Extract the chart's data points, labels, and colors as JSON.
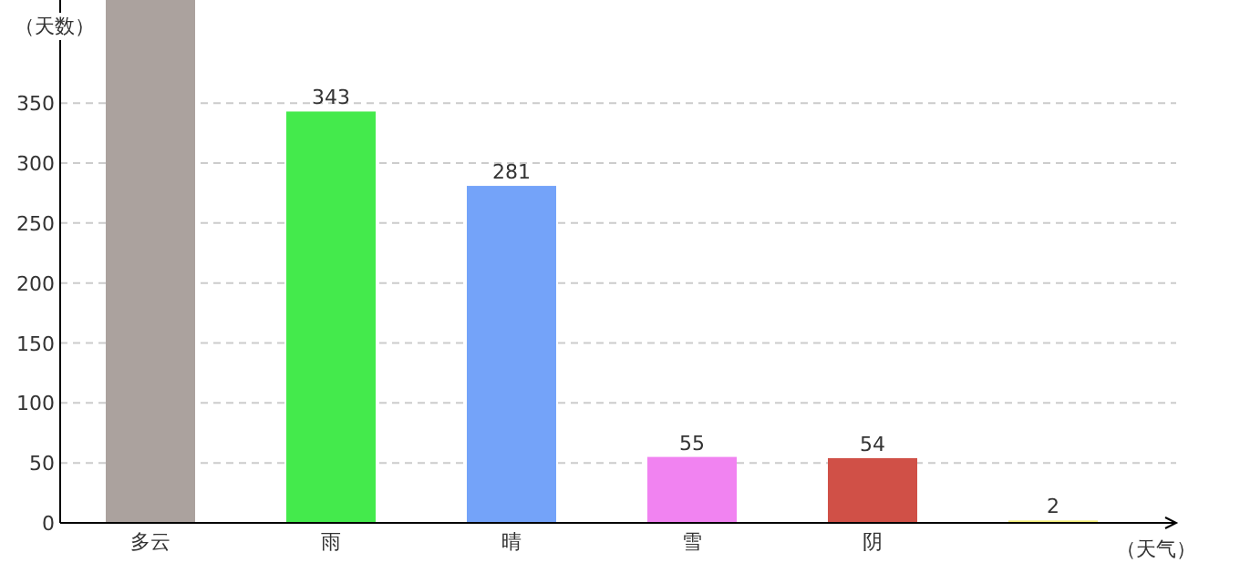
{
  "chart_data": {
    "type": "bar",
    "ylabel": "（天数）",
    "xlabel": "（天气）",
    "categories": [
      "多云",
      "雨",
      "晴",
      "雪",
      "阴",
      null
    ],
    "values": [
      436,
      343,
      281,
      55,
      54,
      2
    ],
    "value_labels": [
      null,
      "343",
      "281",
      "55",
      "54",
      "2"
    ],
    "colors": [
      "#aba29e",
      "#44ea4c",
      "#74a3f9",
      "#f183f1",
      "#d05047",
      "#f5f07a"
    ],
    "ylim": [
      0,
      436
    ],
    "yticks": [
      0,
      50,
      100,
      150,
      200,
      250,
      300,
      350
    ],
    "grid": "y"
  }
}
